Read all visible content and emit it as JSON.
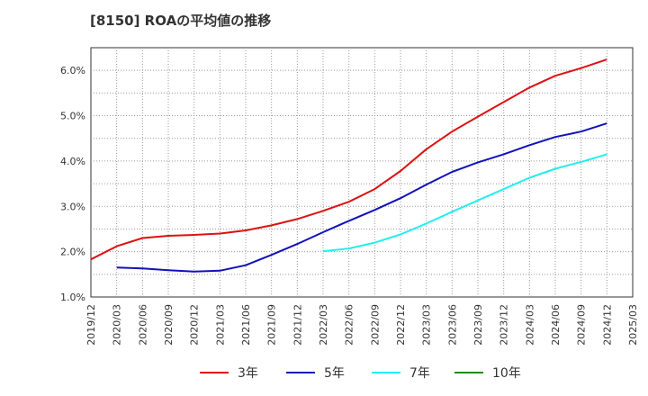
{
  "title": "[8150]  ROAの平均値の推移",
  "chart_data": {
    "type": "line",
    "title": "[8150]  ROAの平均値の推移",
    "xlabel": "",
    "ylabel": "",
    "x": [
      "2019/12",
      "2020/03",
      "2020/06",
      "2020/09",
      "2020/12",
      "2021/03",
      "2021/06",
      "2021/09",
      "2021/12",
      "2022/03",
      "2022/06",
      "2022/09",
      "2022/12",
      "2023/03",
      "2023/06",
      "2023/09",
      "2023/12",
      "2024/03",
      "2024/06",
      "2024/09",
      "2024/12",
      "2025/03"
    ],
    "ylim": [
      1.0,
      6.5
    ],
    "yticks": [
      1.0,
      2.0,
      3.0,
      4.0,
      5.0,
      6.0
    ],
    "ytick_labels": [
      "1.0%",
      "2.0%",
      "3.0%",
      "4.0%",
      "5.0%",
      "6.0%"
    ],
    "grid": true,
    "legend_position": "bottom",
    "series": [
      {
        "name": "3年",
        "color": "#dd1111",
        "values": [
          1.83,
          2.12,
          2.3,
          2.35,
          2.37,
          2.4,
          2.47,
          2.58,
          2.72,
          2.9,
          3.1,
          3.38,
          3.78,
          4.26,
          4.65,
          4.98,
          5.3,
          5.62,
          5.88,
          6.05,
          6.24,
          null
        ]
      },
      {
        "name": "5年",
        "color": "#1111bb",
        "values": [
          null,
          1.65,
          1.63,
          1.59,
          1.56,
          1.58,
          1.7,
          1.93,
          2.17,
          2.43,
          2.68,
          2.92,
          3.18,
          3.48,
          3.76,
          3.97,
          4.15,
          4.35,
          4.53,
          4.65,
          4.83,
          null
        ]
      },
      {
        "name": "7年",
        "color": "#22eeee",
        "values": [
          null,
          null,
          null,
          null,
          null,
          null,
          null,
          null,
          null,
          2.01,
          2.07,
          2.2,
          2.38,
          2.62,
          2.88,
          3.13,
          3.38,
          3.63,
          3.83,
          3.98,
          4.15,
          null
        ]
      },
      {
        "name": "10年",
        "color": "#228822",
        "values": [
          null,
          null,
          null,
          null,
          null,
          null,
          null,
          null,
          null,
          null,
          null,
          null,
          null,
          null,
          null,
          null,
          null,
          null,
          null,
          null,
          null,
          null
        ]
      }
    ]
  }
}
